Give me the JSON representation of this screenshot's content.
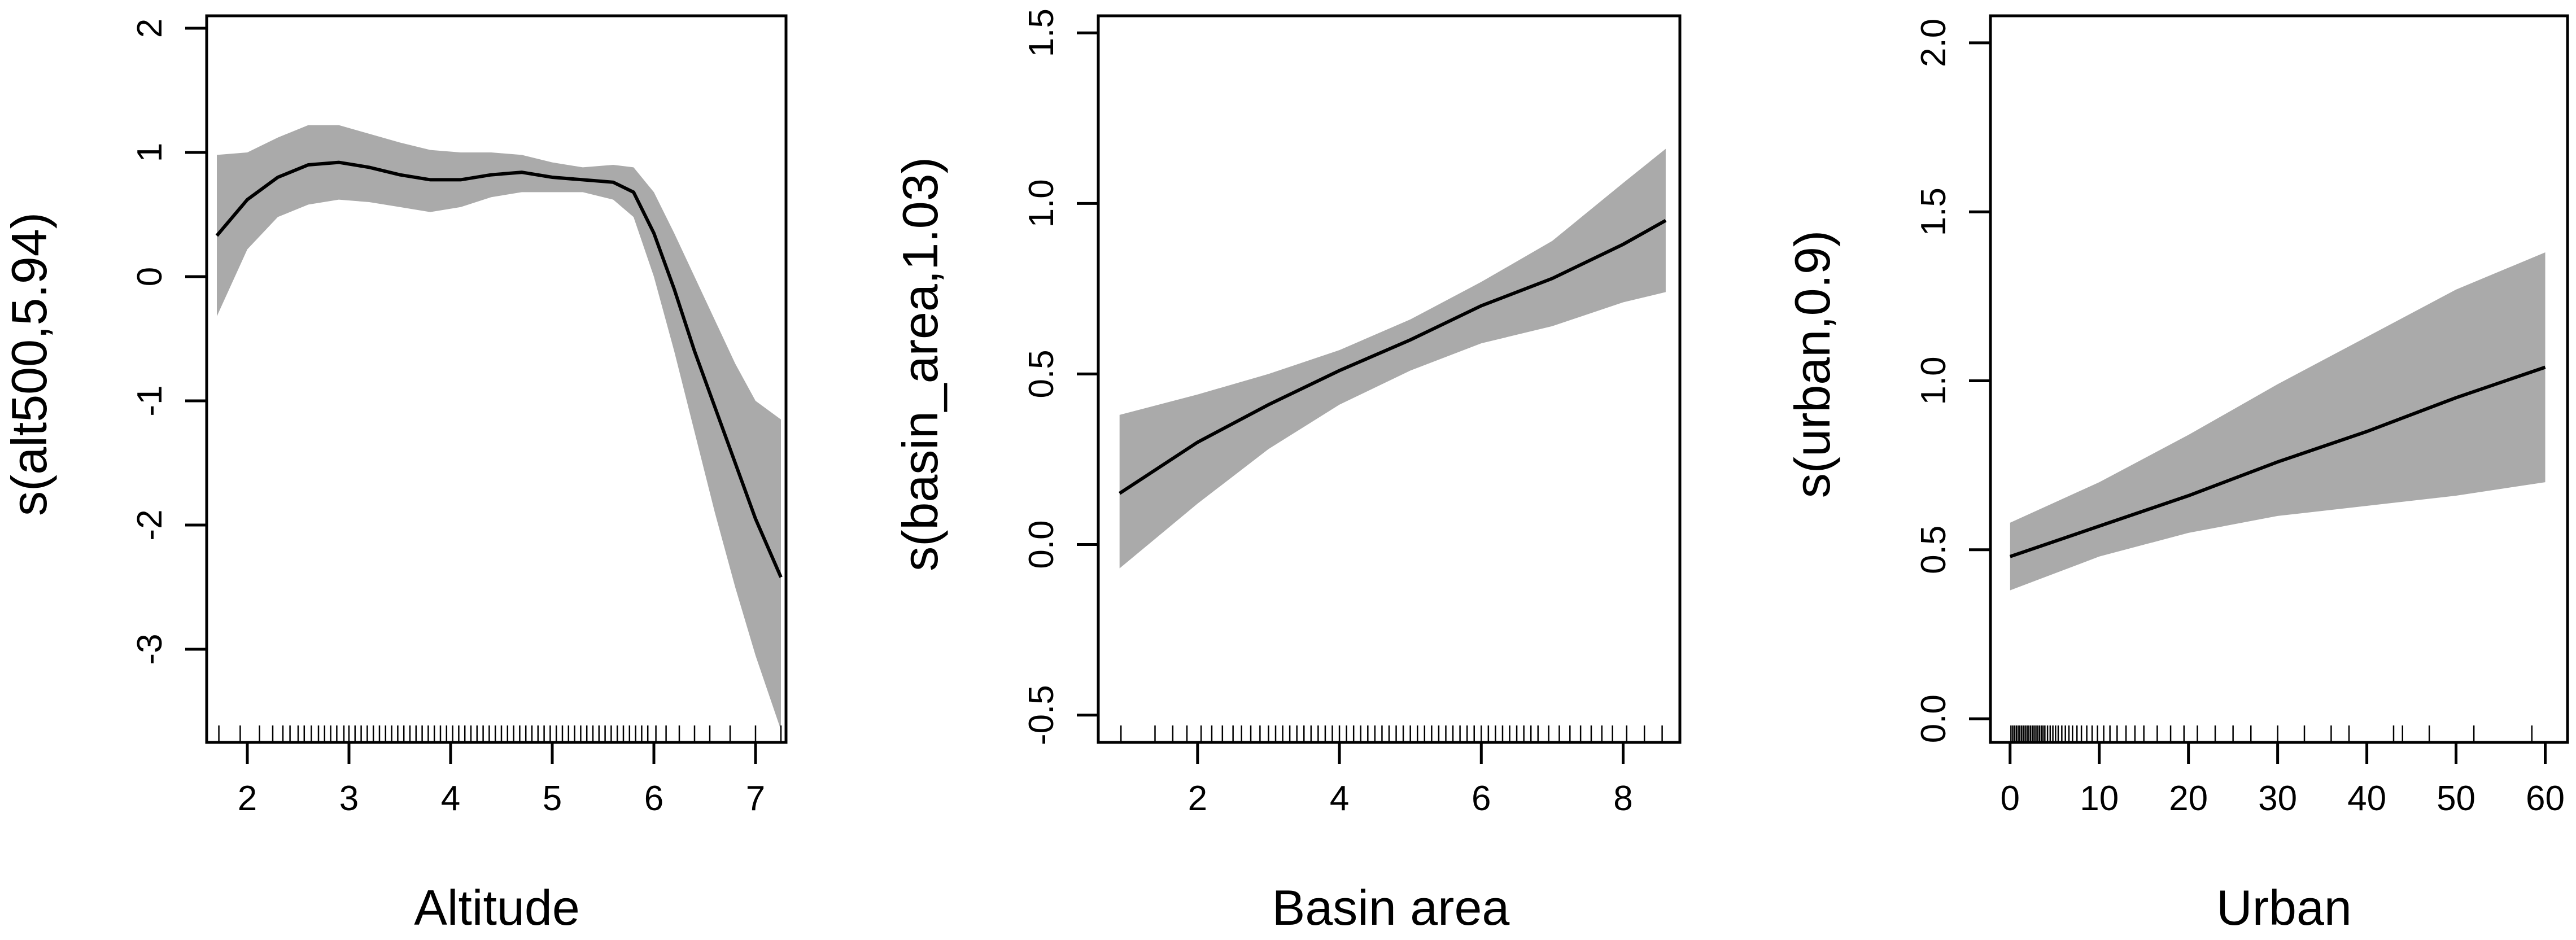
{
  "chart_data": [
    {
      "type": "line",
      "xlabel": "Altitude",
      "ylabel": "s(alt500,5.94)",
      "xlim": [
        1.6,
        7.3
      ],
      "ylim": [
        -3.75,
        2.1
      ],
      "xticks": [
        2,
        3,
        4,
        5,
        6,
        7
      ],
      "yticks": [
        -3,
        -2,
        -1,
        0,
        1,
        2
      ],
      "grid": false,
      "band_color": "#aaaaaa",
      "line_color": "#000000",
      "series": [
        {
          "x": [
            1.7,
            2.0,
            2.3,
            2.6,
            2.9,
            3.2,
            3.5,
            3.8,
            4.1,
            4.4,
            4.7,
            5.0,
            5.3,
            5.6,
            5.8,
            6.0,
            6.2,
            6.4,
            6.6,
            6.8,
            7.0,
            7.25
          ],
          "values": [
            0.33,
            0.62,
            0.8,
            0.9,
            0.92,
            0.88,
            0.82,
            0.78,
            0.78,
            0.82,
            0.84,
            0.8,
            0.78,
            0.76,
            0.68,
            0.35,
            -0.1,
            -0.6,
            -1.05,
            -1.5,
            -1.95,
            -2.42
          ],
          "upper": [
            0.98,
            1.0,
            1.12,
            1.22,
            1.22,
            1.15,
            1.08,
            1.02,
            1.0,
            1.0,
            0.98,
            0.92,
            0.88,
            0.9,
            0.88,
            0.68,
            0.35,
            0.0,
            -0.35,
            -0.7,
            -1.0,
            -1.15
          ],
          "lower": [
            -0.32,
            0.22,
            0.48,
            0.58,
            0.62,
            0.6,
            0.56,
            0.52,
            0.56,
            0.64,
            0.68,
            0.68,
            0.68,
            0.62,
            0.48,
            0.0,
            -0.6,
            -1.25,
            -1.9,
            -2.5,
            -3.05,
            -3.65
          ]
        }
      ],
      "rug": [
        1.72,
        1.93,
        2.12,
        2.25,
        2.35,
        2.42,
        2.5,
        2.56,
        2.63,
        2.7,
        2.76,
        2.82,
        2.88,
        2.95,
        3.0,
        3.06,
        3.12,
        3.18,
        3.24,
        3.3,
        3.36,
        3.42,
        3.48,
        3.54,
        3.6,
        3.66,
        3.72,
        3.78,
        3.84,
        3.9,
        3.96,
        4.02,
        4.08,
        4.14,
        4.2,
        4.26,
        4.32,
        4.38,
        4.44,
        4.5,
        4.56,
        4.62,
        4.68,
        4.74,
        4.8,
        4.86,
        4.92,
        4.98,
        5.04,
        5.1,
        5.16,
        5.22,
        5.28,
        5.34,
        5.4,
        5.46,
        5.52,
        5.58,
        5.64,
        5.7,
        5.76,
        5.82,
        5.88,
        5.94,
        6.02,
        6.12,
        6.25,
        6.4,
        6.55,
        6.75,
        7.0,
        7.25
      ]
    },
    {
      "type": "line",
      "xlabel": "Basin area",
      "ylabel": "s(basin_area,1.03)",
      "xlim": [
        0.6,
        8.8
      ],
      "ylim": [
        -0.58,
        1.55
      ],
      "xticks": [
        2,
        4,
        6,
        8
      ],
      "yticks": [
        -0.5,
        0.0,
        0.5,
        1.0,
        1.5
      ],
      "ytick_labels": [
        "-0.5",
        "0.0",
        "0.5",
        "1.0",
        "1.5"
      ],
      "grid": false,
      "band_color": "#aaaaaa",
      "line_color": "#000000",
      "series": [
        {
          "x": [
            0.9,
            2.0,
            3.0,
            4.0,
            5.0,
            6.0,
            7.0,
            8.0,
            8.6
          ],
          "values": [
            0.15,
            0.3,
            0.41,
            0.51,
            0.6,
            0.7,
            0.78,
            0.88,
            0.95
          ],
          "upper": [
            0.38,
            0.44,
            0.5,
            0.57,
            0.66,
            0.77,
            0.89,
            1.06,
            1.16
          ],
          "lower": [
            -0.07,
            0.12,
            0.28,
            0.41,
            0.51,
            0.59,
            0.64,
            0.71,
            0.74
          ]
        }
      ],
      "rug": [
        0.92,
        1.4,
        1.65,
        1.85,
        2.05,
        2.2,
        2.35,
        2.5,
        2.62,
        2.75,
        2.88,
        3.0,
        3.1,
        3.2,
        3.3,
        3.4,
        3.5,
        3.6,
        3.7,
        3.8,
        3.9,
        4.0,
        4.1,
        4.2,
        4.3,
        4.4,
        4.5,
        4.6,
        4.7,
        4.8,
        4.9,
        5.0,
        5.1,
        5.2,
        5.3,
        5.4,
        5.5,
        5.6,
        5.7,
        5.8,
        5.9,
        6.0,
        6.1,
        6.2,
        6.3,
        6.4,
        6.5,
        6.6,
        6.7,
        6.8,
        6.95,
        7.1,
        7.25,
        7.4,
        7.55,
        7.7,
        7.85,
        8.05,
        8.3,
        8.55
      ]
    },
    {
      "type": "line",
      "xlabel": "Urban",
      "ylabel": "s(urban,0.9)",
      "xlim": [
        -2.2,
        62.5
      ],
      "ylim": [
        -0.07,
        2.08
      ],
      "xticks": [
        0,
        10,
        20,
        30,
        40,
        50,
        60
      ],
      "yticks": [
        0.0,
        0.5,
        1.0,
        1.5,
        2.0
      ],
      "ytick_labels": [
        "0.0",
        "0.5",
        "1.0",
        "1.5",
        "2.0"
      ],
      "grid": false,
      "band_color": "#aaaaaa",
      "line_color": "#000000",
      "series": [
        {
          "x": [
            0,
            10,
            20,
            30,
            40,
            50,
            60
          ],
          "values": [
            0.48,
            0.57,
            0.66,
            0.76,
            0.85,
            0.95,
            1.04
          ],
          "upper": [
            0.58,
            0.7,
            0.84,
            0.99,
            1.13,
            1.27,
            1.38
          ],
          "lower": [
            0.38,
            0.48,
            0.55,
            0.6,
            0.63,
            0.66,
            0.7
          ]
        }
      ],
      "rug": [
        0.1,
        0.3,
        0.5,
        0.7,
        0.9,
        1.1,
        1.3,
        1.5,
        1.7,
        1.9,
        2.1,
        2.3,
        2.5,
        2.7,
        2.9,
        3.1,
        3.3,
        3.5,
        3.7,
        3.9,
        4.2,
        4.5,
        4.8,
        5.1,
        5.4,
        5.8,
        6.2,
        6.6,
        7.0,
        7.5,
        8.0,
        8.6,
        9.2,
        9.8,
        10.5,
        11.2,
        12.0,
        13.0,
        14.0,
        15.0,
        16.5,
        18.0,
        19.5,
        21.0,
        23.0,
        25.0,
        27.0,
        30.0,
        33.0,
        36.0,
        38.0,
        43.0,
        44.0,
        47.0,
        52.0,
        58.5
      ]
    }
  ]
}
